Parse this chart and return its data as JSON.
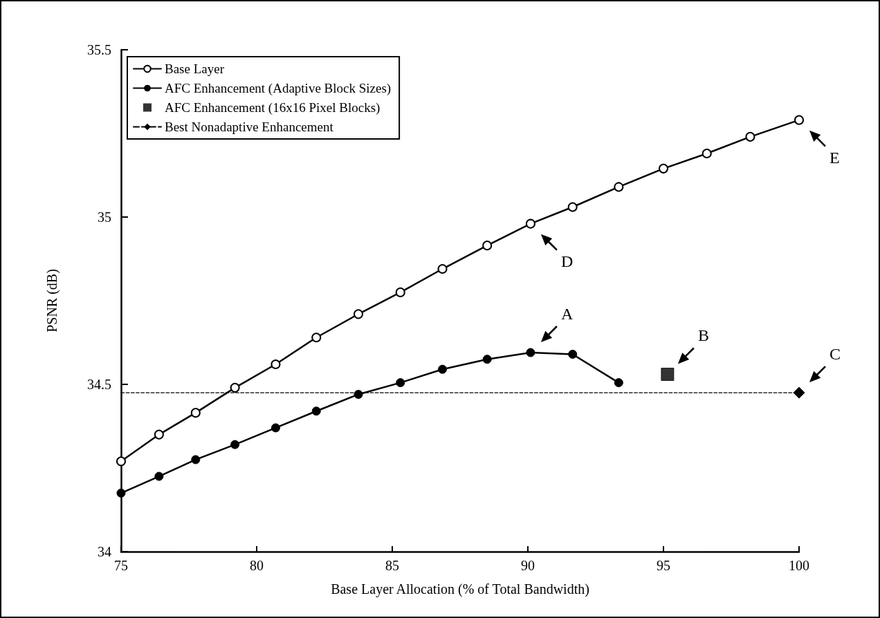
{
  "chart_data": {
    "type": "line",
    "xlabel": "Base Layer Allocation (% of Total Bandwidth)",
    "ylabel": "PSNR (dB)",
    "xlim": [
      75,
      100
    ],
    "xticks": [
      75,
      80,
      85,
      90,
      95,
      100
    ],
    "ylim": [
      34,
      35.5
    ],
    "yticks": [
      34,
      34.5,
      35,
      35.5
    ],
    "grid": false,
    "legend": "top left",
    "line_style": "solid",
    "series": [
      {
        "name": "Base Layer",
        "marker": "circle",
        "color": "#000000",
        "x": [
          75,
          76.4,
          77.75,
          79.2,
          80.7,
          82.2,
          83.75,
          85.3,
          86.85,
          88.5,
          90.1,
          91.65,
          93.35,
          95,
          96.6,
          98.2,
          100
        ],
        "values": [
          34.27,
          34.35,
          34.415,
          34.49,
          34.56,
          34.64,
          34.71,
          34.775,
          34.845,
          34.915,
          34.98,
          35.03,
          35.09,
          35.145,
          35.19,
          35.24,
          35.29
        ]
      },
      {
        "name": "AFC Enhancement (Adaptive Block Sizes)",
        "marker": "circle",
        "color": "#000000",
        "x": [
          75,
          76.4,
          77.75,
          79.2,
          80.7,
          82.2,
          83.75,
          85.3,
          86.85,
          88.5,
          90.1,
          91.65,
          93.35
        ],
        "values": [
          34.175,
          34.225,
          34.275,
          34.32,
          34.37,
          34.42,
          34.47,
          34.505,
          34.545,
          34.575,
          34.595,
          34.59,
          34.505
        ]
      },
      {
        "name": "AFC Enhancement (16x16 Pixel Blocks)",
        "type": "scatter",
        "marker": "square",
        "color": "#000000",
        "x": [
          95.15
        ],
        "values": [
          34.53
        ]
      },
      {
        "name": "Best Nonadaptive Enhancement",
        "marker": "diamond",
        "line_style": "dashed",
        "color": "#000000",
        "x": [
          75,
          100
        ],
        "values": [
          34.475,
          34.475
        ]
      }
    ],
    "annotations": [
      {
        "text": "A",
        "x": 90.1,
        "y": 34.595
      },
      {
        "text": "B",
        "x": 95.15,
        "y": 34.53
      },
      {
        "text": "C",
        "x": 100,
        "y": 34.475
      },
      {
        "text": "D",
        "x": 90.1,
        "y": 34.98
      },
      {
        "text": "E",
        "x": 100,
        "y": 35.29
      }
    ]
  }
}
